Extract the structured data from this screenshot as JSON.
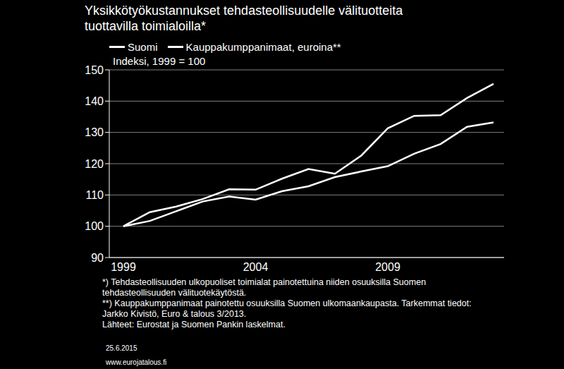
{
  "chart_data": {
    "type": "line",
    "title": "Yksikkötyökustannukset tehdasteollisuudelle välituotteita\n tuottavilla toimialoilla*",
    "subtitle": "Indeksi, 1999 = 100",
    "categories": [
      "1999",
      null,
      null,
      null,
      null,
      "2004",
      null,
      null,
      null,
      null,
      "2009",
      null,
      null,
      null,
      null
    ],
    "series": [
      {
        "name": "Suomi",
        "color": "#ffffff",
        "values": [
          100,
          104.5,
          106.3,
          108.7,
          111.8,
          111.7,
          115.2,
          118.3,
          116.8,
          122.6,
          131.3,
          135.3,
          135.5,
          141,
          145.5
        ]
      },
      {
        "name": "Kauppakumppanimaat, euroina**",
        "color": "#ffffff",
        "values": [
          100,
          101.7,
          104.8,
          107.9,
          109.5,
          108.5,
          111.2,
          112.8,
          115.7,
          117.5,
          119.2,
          123.2,
          126.3,
          131.8,
          133.2
        ]
      }
    ],
    "ylim": [
      90,
      150
    ],
    "yticks": [
      90,
      100,
      110,
      120,
      130,
      140,
      150
    ],
    "grid": true,
    "legend": "top",
    "footnotes": [
      "*) Tehdasteollisuuden ulkopuoliset toimialat painotettuina niiden osuuksilla Suomen\ntehdasteollisuuden välituotekäytöstä.",
      "**) Kauppakumppanimaat painotettu osuuksilla Suomen ulkomaankaupasta. Tarkemmat tiedot:\nJarkko Kivistö, Euro & talous 3/2013.",
      "Lähteet: Eurostat ja Suomen Pankin laskelmat."
    ],
    "date": "25.6.2015",
    "website": "www.eurojatalous.fi"
  }
}
